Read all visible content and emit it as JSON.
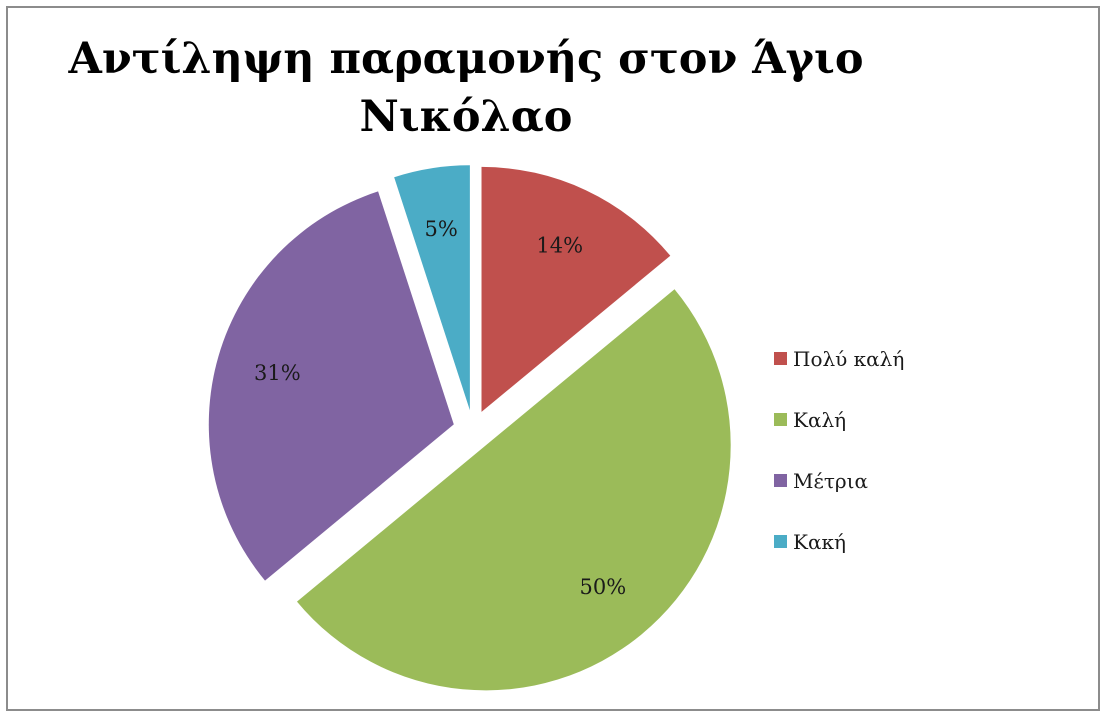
{
  "chart_data": {
    "type": "pie",
    "title": [
      "Αντίληψη παραμονής στον Άγιο",
      "Νικόλαο"
    ],
    "categories": [
      "Πολύ καλή",
      "Καλή",
      "Μέτρια",
      "Κακή"
    ],
    "values": [
      14,
      50,
      31,
      5
    ],
    "labels": [
      "14%",
      "50%",
      "31%",
      "5%"
    ],
    "colors": [
      "#c0504d",
      "#9bbb59",
      "#8064a2",
      "#4bacc6"
    ],
    "exploded": true,
    "legend_position": "right"
  }
}
